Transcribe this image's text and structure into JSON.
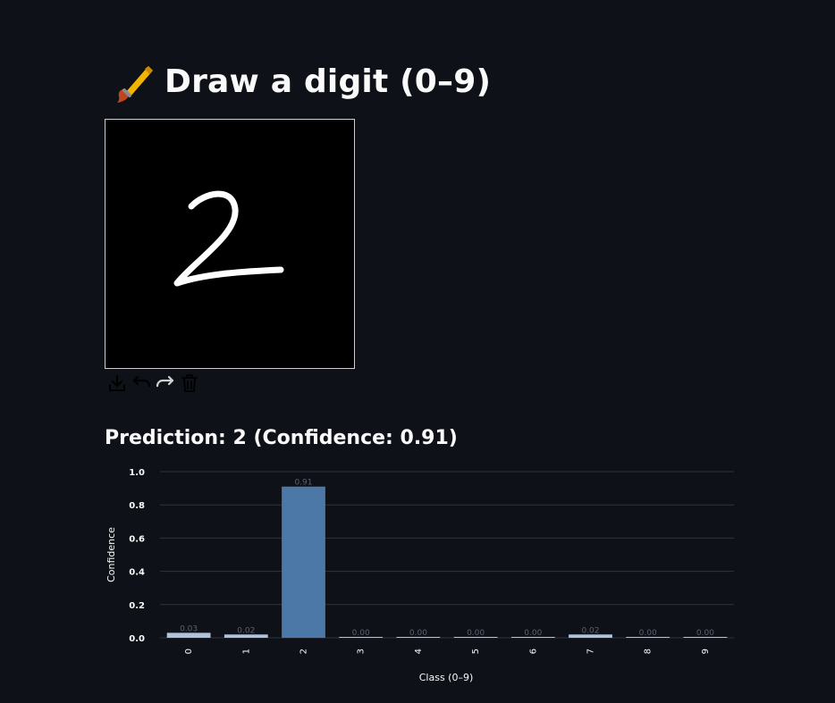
{
  "header": {
    "title": "Draw a digit (0–9)",
    "icon": "paintbrush-icon"
  },
  "canvas": {
    "background": "#000000",
    "stroke_color": "#ffffff",
    "drawn_digit": "2"
  },
  "toolbar": {
    "tools": [
      {
        "name": "download-icon"
      },
      {
        "name": "undo-icon"
      },
      {
        "name": "redo-icon"
      },
      {
        "name": "trash-icon"
      }
    ]
  },
  "result": {
    "prediction_text": "Prediction: 2 (Confidence: 0.91)"
  },
  "chart_data": {
    "type": "bar",
    "categories": [
      "0",
      "1",
      "2",
      "3",
      "4",
      "5",
      "6",
      "7",
      "8",
      "9"
    ],
    "values": [
      0.03,
      0.02,
      0.91,
      0.0,
      0.0,
      0.0,
      0.0,
      0.02,
      0.0,
      0.0
    ],
    "data_labels": [
      "0.03",
      "0.02",
      "0.91",
      "0.00",
      "0.00",
      "0.00",
      "0.00",
      "0.02",
      "0.00",
      "0.00"
    ],
    "title": "",
    "xlabel": "Class (0–9)",
    "ylabel": "Confidence",
    "ylim": [
      0,
      1.0
    ],
    "yticks": [
      "0.0",
      "0.2",
      "0.4",
      "0.6",
      "0.8",
      "1.0"
    ],
    "grid": true,
    "colors": {
      "bar_low": "#aec3d9",
      "bar_high": "#4c78a8",
      "grid": "#31333f",
      "text": "#fafafa",
      "data_label": "#5a6070"
    }
  }
}
